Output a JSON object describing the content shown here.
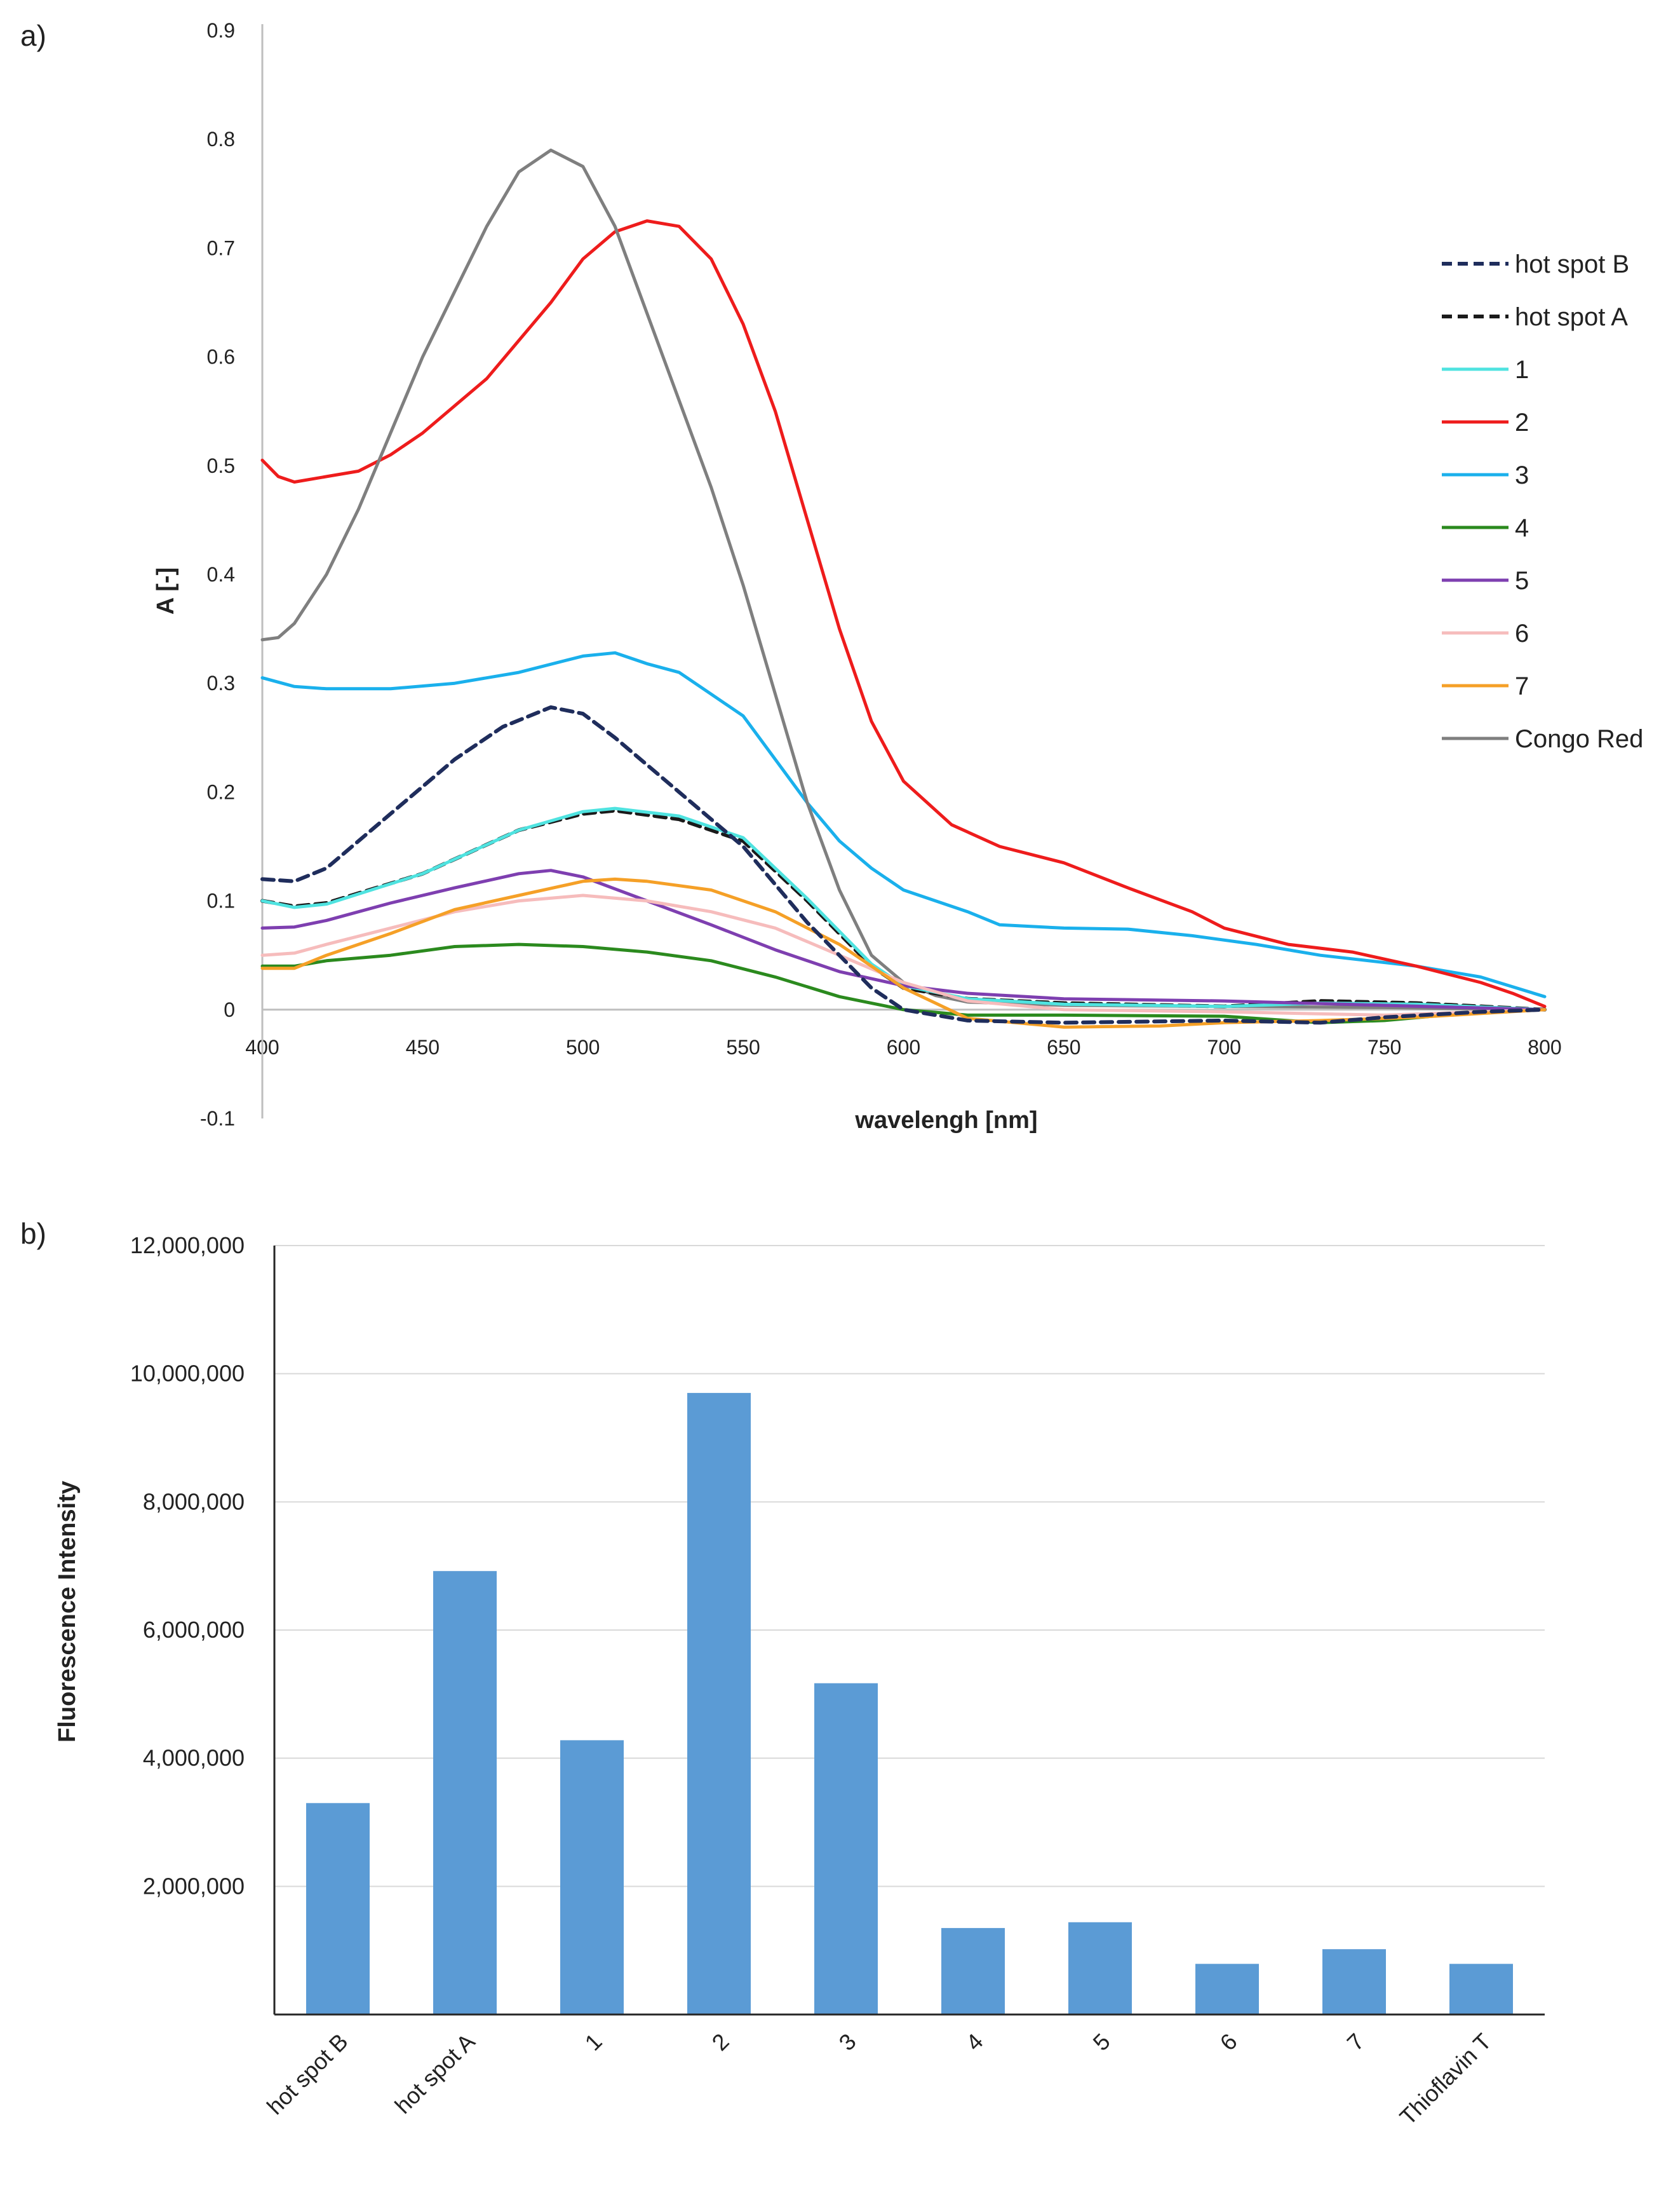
{
  "panels": {
    "a_label": "a)",
    "b_label": "b)"
  },
  "chart_data": [
    {
      "type": "line",
      "xlabel": "wavelengh [nm]",
      "ylabel": "A [-]",
      "xlim": [
        400,
        800
      ],
      "ylim": [
        -0.1,
        0.9
      ],
      "xticks": [
        "400",
        "450",
        "500",
        "550",
        "600",
        "650",
        "700",
        "750",
        "800"
      ],
      "yticks": [
        "-0.1",
        "0",
        "0.1",
        "0.2",
        "0.3",
        "0.4",
        "0.5",
        "0.6",
        "0.7",
        "0.8",
        "0.9"
      ],
      "grid": false,
      "legend_position": "right",
      "series": [
        {
          "name": "hot spot B",
          "color": "#1f2d5c",
          "dashed": true,
          "points": [
            [
              400,
              0.12
            ],
            [
              410,
              0.118
            ],
            [
              420,
              0.13
            ],
            [
              440,
              0.18
            ],
            [
              460,
              0.23
            ],
            [
              475,
              0.26
            ],
            [
              490,
              0.278
            ],
            [
              500,
              0.272
            ],
            [
              510,
              0.25
            ],
            [
              530,
              0.2
            ],
            [
              550,
              0.15
            ],
            [
              570,
              0.08
            ],
            [
              590,
              0.02
            ],
            [
              600,
              0.0
            ],
            [
              620,
              -0.01
            ],
            [
              650,
              -0.012
            ],
            [
              700,
              -0.01
            ],
            [
              730,
              -0.012
            ],
            [
              750,
              -0.007
            ],
            [
              780,
              -0.002
            ],
            [
              800,
              0.0
            ]
          ]
        },
        {
          "name": "hot spot A",
          "color": "#1a1a1a",
          "dashed": true,
          "points": [
            [
              400,
              0.1
            ],
            [
              410,
              0.095
            ],
            [
              420,
              0.098
            ],
            [
              450,
              0.125
            ],
            [
              480,
              0.165
            ],
            [
              500,
              0.18
            ],
            [
              510,
              0.183
            ],
            [
              530,
              0.175
            ],
            [
              550,
              0.155
            ],
            [
              570,
              0.1
            ],
            [
              590,
              0.04
            ],
            [
              600,
              0.02
            ],
            [
              620,
              0.01
            ],
            [
              650,
              0.006
            ],
            [
              700,
              0.003
            ],
            [
              730,
              0.008
            ],
            [
              760,
              0.006
            ],
            [
              800,
              0.0
            ]
          ]
        },
        {
          "name": "1",
          "color": "#4fe3e0",
          "dashed": false,
          "points": [
            [
              400,
              0.1
            ],
            [
              410,
              0.094
            ],
            [
              420,
              0.097
            ],
            [
              450,
              0.125
            ],
            [
              480,
              0.165
            ],
            [
              500,
              0.182
            ],
            [
              510,
              0.185
            ],
            [
              530,
              0.178
            ],
            [
              550,
              0.158
            ],
            [
              570,
              0.102
            ],
            [
              590,
              0.042
            ],
            [
              600,
              0.022
            ],
            [
              620,
              0.01
            ],
            [
              650,
              0.005
            ],
            [
              700,
              0.003
            ],
            [
              730,
              0.006
            ],
            [
              760,
              0.005
            ],
            [
              800,
              0.0
            ]
          ]
        },
        {
          "name": "2",
          "color": "#ee1c1c",
          "dashed": false,
          "points": [
            [
              400,
              0.505
            ],
            [
              405,
              0.49
            ],
            [
              410,
              0.485
            ],
            [
              420,
              0.49
            ],
            [
              430,
              0.495
            ],
            [
              440,
              0.51
            ],
            [
              450,
              0.53
            ],
            [
              460,
              0.555
            ],
            [
              470,
              0.58
            ],
            [
              480,
              0.615
            ],
            [
              490,
              0.65
            ],
            [
              500,
              0.69
            ],
            [
              510,
              0.715
            ],
            [
              520,
              0.725
            ],
            [
              530,
              0.72
            ],
            [
              540,
              0.69
            ],
            [
              550,
              0.63
            ],
            [
              560,
              0.55
            ],
            [
              570,
              0.45
            ],
            [
              580,
              0.35
            ],
            [
              590,
              0.265
            ],
            [
              600,
              0.21
            ],
            [
              615,
              0.17
            ],
            [
              630,
              0.15
            ],
            [
              650,
              0.135
            ],
            [
              670,
              0.112
            ],
            [
              690,
              0.09
            ],
            [
              700,
              0.075
            ],
            [
              720,
              0.06
            ],
            [
              740,
              0.053
            ],
            [
              760,
              0.04
            ],
            [
              780,
              0.025
            ],
            [
              790,
              0.015
            ],
            [
              800,
              0.003
            ]
          ]
        },
        {
          "name": "3",
          "color": "#1ab0ec",
          "dashed": false,
          "points": [
            [
              400,
              0.305
            ],
            [
              410,
              0.297
            ],
            [
              420,
              0.295
            ],
            [
              440,
              0.295
            ],
            [
              460,
              0.3
            ],
            [
              480,
              0.31
            ],
            [
              500,
              0.325
            ],
            [
              510,
              0.328
            ],
            [
              520,
              0.318
            ],
            [
              530,
              0.31
            ],
            [
              540,
              0.29
            ],
            [
              550,
              0.27
            ],
            [
              560,
              0.23
            ],
            [
              570,
              0.19
            ],
            [
              580,
              0.155
            ],
            [
              590,
              0.13
            ],
            [
              600,
              0.11
            ],
            [
              620,
              0.09
            ],
            [
              630,
              0.078
            ],
            [
              650,
              0.075
            ],
            [
              670,
              0.074
            ],
            [
              690,
              0.068
            ],
            [
              710,
              0.06
            ],
            [
              730,
              0.05
            ],
            [
              760,
              0.04
            ],
            [
              780,
              0.03
            ],
            [
              800,
              0.012
            ]
          ]
        },
        {
          "name": "4",
          "color": "#2b8a1e",
          "dashed": false,
          "points": [
            [
              400,
              0.04
            ],
            [
              410,
              0.04
            ],
            [
              420,
              0.045
            ],
            [
              440,
              0.05
            ],
            [
              460,
              0.058
            ],
            [
              480,
              0.06
            ],
            [
              500,
              0.058
            ],
            [
              520,
              0.053
            ],
            [
              540,
              0.045
            ],
            [
              560,
              0.03
            ],
            [
              580,
              0.012
            ],
            [
              600,
              0.0
            ],
            [
              620,
              -0.005
            ],
            [
              650,
              -0.005
            ],
            [
              700,
              -0.006
            ],
            [
              730,
              -0.012
            ],
            [
              750,
              -0.01
            ],
            [
              780,
              -0.002
            ],
            [
              800,
              0.0
            ]
          ]
        },
        {
          "name": "5",
          "color": "#7e3fb0",
          "dashed": false,
          "points": [
            [
              400,
              0.075
            ],
            [
              410,
              0.076
            ],
            [
              420,
              0.082
            ],
            [
              440,
              0.098
            ],
            [
              460,
              0.112
            ],
            [
              480,
              0.125
            ],
            [
              490,
              0.128
            ],
            [
              500,
              0.122
            ],
            [
              520,
              0.1
            ],
            [
              540,
              0.078
            ],
            [
              560,
              0.055
            ],
            [
              580,
              0.035
            ],
            [
              600,
              0.022
            ],
            [
              620,
              0.015
            ],
            [
              650,
              0.01
            ],
            [
              700,
              0.008
            ],
            [
              750,
              0.004
            ],
            [
              800,
              0.0
            ]
          ]
        },
        {
          "name": "6",
          "color": "#f6bcbc",
          "dashed": false,
          "points": [
            [
              400,
              0.05
            ],
            [
              410,
              0.052
            ],
            [
              420,
              0.06
            ],
            [
              440,
              0.075
            ],
            [
              460,
              0.09
            ],
            [
              480,
              0.1
            ],
            [
              500,
              0.105
            ],
            [
              520,
              0.1
            ],
            [
              540,
              0.09
            ],
            [
              560,
              0.075
            ],
            [
              580,
              0.05
            ],
            [
              600,
              0.025
            ],
            [
              620,
              0.008
            ],
            [
              650,
              0.0
            ],
            [
              700,
              -0.002
            ],
            [
              750,
              -0.005
            ],
            [
              800,
              0.0
            ]
          ]
        },
        {
          "name": "7",
          "color": "#f5a027",
          "dashed": false,
          "points": [
            [
              400,
              0.038
            ],
            [
              410,
              0.038
            ],
            [
              420,
              0.05
            ],
            [
              440,
              0.07
            ],
            [
              460,
              0.092
            ],
            [
              480,
              0.105
            ],
            [
              500,
              0.118
            ],
            [
              510,
              0.12
            ],
            [
              520,
              0.118
            ],
            [
              540,
              0.11
            ],
            [
              560,
              0.09
            ],
            [
              580,
              0.06
            ],
            [
              600,
              0.02
            ],
            [
              620,
              -0.008
            ],
            [
              650,
              -0.016
            ],
            [
              680,
              -0.015
            ],
            [
              700,
              -0.012
            ],
            [
              730,
              -0.01
            ],
            [
              760,
              -0.007
            ],
            [
              800,
              0.0
            ]
          ]
        },
        {
          "name": "Congo Red",
          "color": "#7f7f7f",
          "dashed": false,
          "points": [
            [
              400,
              0.34
            ],
            [
              405,
              0.342
            ],
            [
              410,
              0.355
            ],
            [
              420,
              0.4
            ],
            [
              430,
              0.46
            ],
            [
              440,
              0.53
            ],
            [
              450,
              0.6
            ],
            [
              460,
              0.66
            ],
            [
              470,
              0.72
            ],
            [
              480,
              0.77
            ],
            [
              490,
              0.79
            ],
            [
              500,
              0.775
            ],
            [
              510,
              0.72
            ],
            [
              520,
              0.64
            ],
            [
              530,
              0.56
            ],
            [
              540,
              0.48
            ],
            [
              550,
              0.39
            ],
            [
              560,
              0.29
            ],
            [
              570,
              0.19
            ],
            [
              580,
              0.11
            ],
            [
              590,
              0.05
            ],
            [
              600,
              0.025
            ],
            [
              610,
              0.013
            ],
            [
              620,
              0.007
            ],
            [
              650,
              0.004
            ],
            [
              700,
              0.003
            ],
            [
              750,
              0.002
            ],
            [
              800,
              0.0
            ]
          ]
        }
      ]
    },
    {
      "type": "bar",
      "ylabel": "Fluorescence Intensity",
      "xlabel": "",
      "ylim": [
        0,
        12000000
      ],
      "yticks": [
        "2,000,000",
        "4,000,000",
        "6,000,000",
        "8,000,000",
        "10,000,000",
        "12,000,000"
      ],
      "grid": true,
      "bar_color": "#5b9bd5",
      "categories": [
        "hot spot B",
        "hot spot A",
        "1",
        "2",
        "3",
        "4",
        "5",
        "6",
        "7",
        "Thioflavin T"
      ],
      "values": [
        3300000,
        6920000,
        4280000,
        9700000,
        5170000,
        1350000,
        1440000,
        790000,
        1020000,
        790000
      ]
    }
  ]
}
